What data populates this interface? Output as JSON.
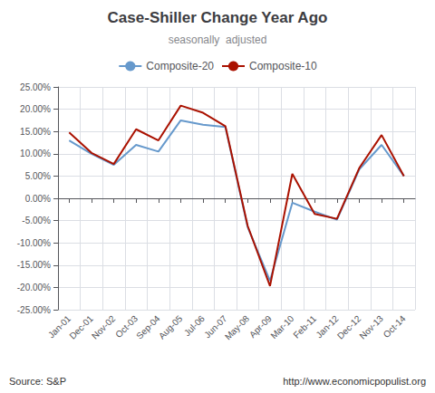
{
  "chart_data": {
    "type": "line",
    "title": "Case-Shiller Change Year Ago",
    "subtitle": "seasonally  adjusted",
    "annotations": [
      "Source: S&P",
      "http://www.economicpopulist.org"
    ],
    "categories": [
      "Jan-01",
      "Dec-01",
      "Nov-02",
      "Oct-03",
      "Sep-04",
      "Aug-05",
      "Jul-06",
      "Jun-07",
      "May-08",
      "Apr-09",
      "Mar-10",
      "Feb-11",
      "Jan-12",
      "Dec-12",
      "Nov-13",
      "Oct-14"
    ],
    "series": [
      {
        "name": "Composite-20",
        "color": "#6699cc",
        "values": [
          0.13,
          0.1,
          0.075,
          0.12,
          0.105,
          0.175,
          0.165,
          0.16,
          -0.065,
          -0.185,
          -0.01,
          -0.03,
          -0.048,
          0.065,
          0.12,
          0.05
        ]
      },
      {
        "name": "Composite-10",
        "color": "#aa1100",
        "values": [
          0.148,
          0.102,
          0.077,
          0.155,
          0.13,
          0.208,
          0.192,
          0.162,
          -0.062,
          -0.197,
          0.055,
          -0.035,
          -0.046,
          0.068,
          0.142,
          0.05
        ]
      }
    ],
    "ylim": [
      -0.25,
      0.25
    ],
    "yticks": [
      {
        "value": -0.25,
        "label": "-25.00%"
      },
      {
        "value": -0.2,
        "label": "-20.00%"
      },
      {
        "value": -0.15,
        "label": "-15.00%"
      },
      {
        "value": -0.1,
        "label": "-10.00%"
      },
      {
        "value": -0.05,
        "label": "-5.00%"
      },
      {
        "value": 0,
        "label": "0.00%"
      },
      {
        "value": 0.05,
        "label": "5.00%"
      },
      {
        "value": 0.1,
        "label": "10.00%"
      },
      {
        "value": 0.15,
        "label": "15.00%"
      },
      {
        "value": 0.2,
        "label": "20.00%"
      },
      {
        "value": 0.25,
        "label": "25.00%"
      }
    ],
    "grid": true,
    "legend": "top"
  }
}
